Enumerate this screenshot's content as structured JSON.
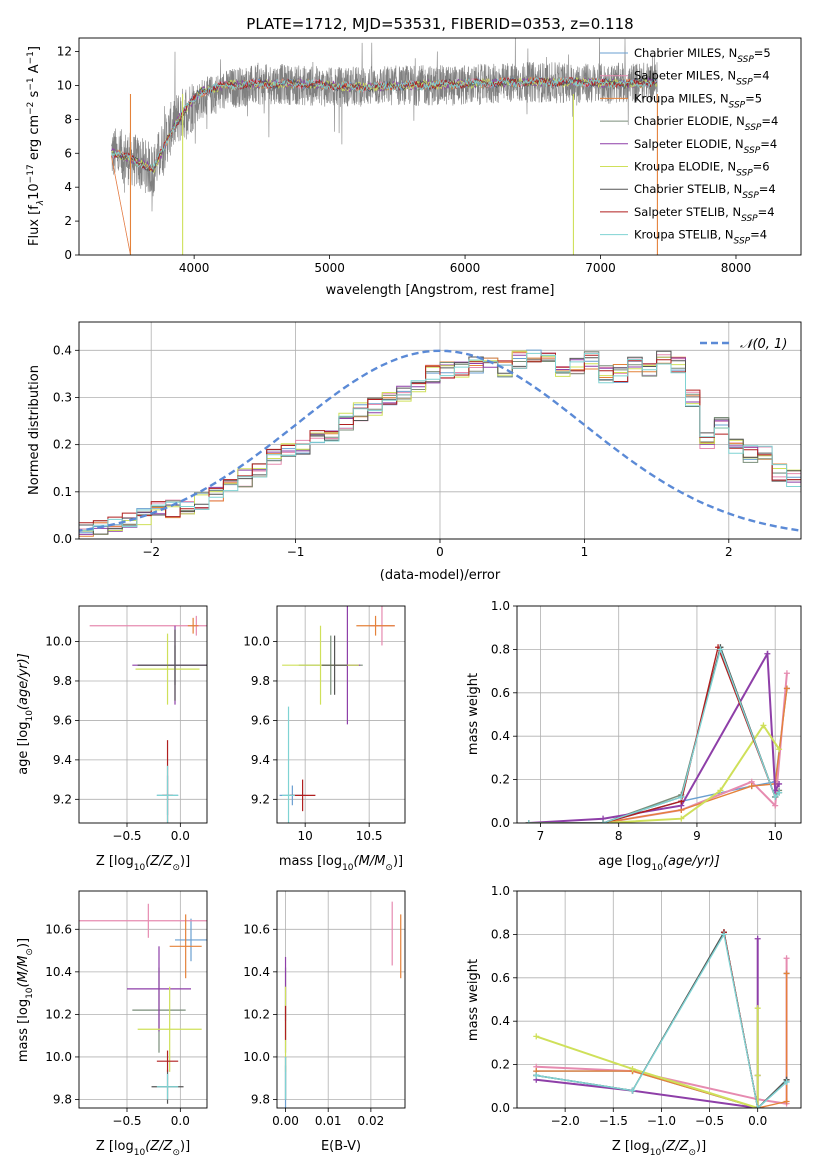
{
  "title": "PLATE=1712, MJD=53531, FIBERID=0353, z=0.118",
  "colors": {
    "chabrier_miles": "#6a9fd0",
    "salpeter_miles": "#e68bb0",
    "kroupa_miles": "#e4823a",
    "chabrier_elodie": "#7a8e7a",
    "salpeter_elodie": "#8e3fa8",
    "kroupa_elodie": "#cfe05a",
    "chabrier_stelib": "#555555",
    "salpeter_stelib": "#b01f1f",
    "kroupa_stelib": "#7fd3d3",
    "gauss": "#5b8ad6",
    "grid": "#b0b0b0"
  },
  "legend": {
    "models": [
      "Chabrier MILES",
      "Salpeter MILES",
      "Kroupa MILES",
      "Chabrier ELODIE",
      "Salpeter ELODIE",
      "Kroupa ELODIE",
      "Chabrier STELIB",
      "Salpeter STELIB",
      "Kroupa STELIB"
    ],
    "nssp_prefix": "N",
    "nssp_sub": "SSP",
    "nssp_values": [
      "=5",
      "=4",
      "=5",
      "=4",
      "=4",
      "=6",
      "=4",
      "=4",
      "=4"
    ],
    "gauss_label": "𝒩(0, 1)"
  },
  "chart_data": [
    {
      "id": "spectrum",
      "type": "line",
      "title": "PLATE=1712, MJD=53531, FIBERID=0353, z=0.118",
      "xlabel": "wavelength [Angstrom, rest frame]",
      "ylabel_main": "Flux [f",
      "ylabel_sub": "λ",
      "ylabel_rest": "10",
      "ylabel_sup1": "−17",
      "ylabel_mid": " erg cm",
      "ylabel_sup2": "−2",
      "ylabel_s": " s",
      "ylabel_sup3": "−1",
      "ylabel_end": " A",
      "ylabel_sup4": "−1",
      "ylabel_close": "]",
      "xlim": [
        3150,
        8480
      ],
      "ylim": [
        0,
        12.8
      ],
      "xticks": [
        4000,
        5000,
        6000,
        7000,
        8000
      ],
      "yticks": [
        0,
        2,
        4,
        6,
        8,
        10,
        12
      ],
      "data_wavelength_range": [
        3390,
        7420
      ],
      "data_envelope": [
        [
          3400,
          6.0
        ],
        [
          3550,
          5.6
        ],
        [
          3700,
          5.0
        ],
        [
          3780,
          6.6
        ],
        [
          3850,
          7.8
        ],
        [
          3950,
          8.6
        ],
        [
          4050,
          9.2
        ],
        [
          4300,
          9.9
        ],
        [
          4600,
          10.1
        ],
        [
          5000,
          9.9
        ],
        [
          5500,
          10.0
        ],
        [
          6000,
          10.0
        ],
        [
          6500,
          10.2
        ],
        [
          7000,
          10.1
        ],
        [
          7400,
          10.2
        ]
      ],
      "model_envelope": [
        [
          3400,
          6.0
        ],
        [
          3500,
          5.8
        ],
        [
          3600,
          5.4
        ],
        [
          3700,
          5.1
        ],
        [
          3780,
          6.4
        ],
        [
          3850,
          7.6
        ],
        [
          3950,
          8.8
        ],
        [
          4050,
          9.6
        ],
        [
          4200,
          10.0
        ],
        [
          4500,
          10.1
        ],
        [
          4800,
          10.1
        ],
        [
          5200,
          9.9
        ],
        [
          5600,
          10.0
        ],
        [
          6000,
          10.1
        ],
        [
          6400,
          10.2
        ],
        [
          6800,
          10.2
        ],
        [
          7200,
          10.1
        ],
        [
          7400,
          10.2
        ]
      ],
      "drops": [
        3530,
        3915,
        6800,
        7420
      ]
    },
    {
      "id": "residuals",
      "type": "line",
      "xlabel": "(data-model)/error",
      "ylabel": "Normed distribution",
      "xlim": [
        -2.5,
        2.5
      ],
      "ylim": [
        0,
        0.46
      ],
      "xticks": [
        -2,
        -1,
        0,
        1,
        2
      ],
      "yticks": [
        0.0,
        0.1,
        0.2,
        0.3,
        0.4
      ],
      "bin_edges_start": -2.6,
      "bin_width": 0.1,
      "base_heights": [
        0.02,
        0.025,
        0.03,
        0.035,
        0.04,
        0.05,
        0.06,
        0.065,
        0.07,
        0.08,
        0.1,
        0.11,
        0.13,
        0.15,
        0.17,
        0.19,
        0.2,
        0.21,
        0.22,
        0.25,
        0.27,
        0.28,
        0.3,
        0.31,
        0.33,
        0.35,
        0.36,
        0.36,
        0.37,
        0.37,
        0.36,
        0.38,
        0.39,
        0.38,
        0.36,
        0.37,
        0.38,
        0.35,
        0.35,
        0.37,
        0.36,
        0.38,
        0.37,
        0.3,
        0.21,
        0.24,
        0.2,
        0.18,
        0.18,
        0.14,
        0.13,
        0.12,
        0.11,
        0.08,
        0.08,
        0.07,
        0.06,
        0.06,
        0.05,
        0.05,
        0.04,
        0.035
      ]
    },
    {
      "id": "age_vs_z",
      "type": "scatter",
      "xlabel_pre": "Z [log",
      "xlabel_sub": "10",
      "xlabel_post": "(Z/Z",
      "xlabel_end": ")]",
      "ylabel_pre": "age  [log",
      "ylabel_sub": "10",
      "ylabel_post": "(age/yr)]",
      "xlim": [
        -0.95,
        0.25
      ],
      "ylim": [
        9.08,
        10.18
      ],
      "xticks": [
        -0.5,
        0.0
      ],
      "xtick_labels": [
        "−0.5",
        "0.0"
      ],
      "yticks": [
        9.2,
        9.4,
        9.6,
        9.8,
        10.0
      ],
      "points": [
        {
          "model": "chabrier_miles",
          "x": -0.12,
          "xe": 0.1,
          "y": 9.22,
          "ye": 0.1
        },
        {
          "model": "salpeter_miles",
          "x": 0.15,
          "xe": 1.0,
          "y": 10.08,
          "ye": 0.05
        },
        {
          "model": "kroupa_miles",
          "x": 0.12,
          "xe": 0.05,
          "y": 10.08,
          "ye": 0.04
        },
        {
          "model": "chabrier_elodie",
          "x": -0.05,
          "xe": 0.35,
          "y": 9.88,
          "ye": 0.1
        },
        {
          "model": "salpeter_elodie",
          "x": -0.05,
          "xe": 0.4,
          "y": 9.88,
          "ye": 0.2
        },
        {
          "model": "kroupa_elodie",
          "x": -0.12,
          "xe": 0.3,
          "y": 9.86,
          "ye": 0.18
        },
        {
          "model": "chabrier_stelib",
          "x": -0.05,
          "xe": 0.35,
          "y": 9.88,
          "ye": 0.18
        },
        {
          "model": "salpeter_stelib",
          "x": -0.12,
          "xe": 0.05,
          "y": 9.22,
          "ye": 0.28
        },
        {
          "model": "kroupa_stelib",
          "x": -0.12,
          "xe": 0.1,
          "y": 9.22,
          "ye": 0.15
        }
      ]
    },
    {
      "id": "age_vs_mass",
      "type": "scatter",
      "xlabel_pre": "mass [log",
      "xlabel_sub": "10",
      "xlabel_post": "(M/M",
      "xlabel_end": ")]",
      "xlim": [
        9.78,
        10.78
      ],
      "ylim": [
        9.08,
        10.18
      ],
      "xticks": [
        10.0,
        10.5
      ],
      "yticks": [
        9.2,
        9.4,
        9.6,
        9.8,
        10.0
      ],
      "points": [
        {
          "model": "chabrier_miles",
          "x": 9.9,
          "xe": 0.1,
          "y": 9.22,
          "ye": 0.05
        },
        {
          "model": "salpeter_miles",
          "x": 10.6,
          "xe": 0.1,
          "y": 10.08,
          "ye": 0.1
        },
        {
          "model": "kroupa_miles",
          "x": 10.55,
          "xe": 0.15,
          "y": 10.08,
          "ye": 0.05
        },
        {
          "model": "chabrier_elodie",
          "x": 10.2,
          "xe": 0.25,
          "y": 9.88,
          "ye": 0.15
        },
        {
          "model": "salpeter_elodie",
          "x": 10.33,
          "xe": 0.1,
          "y": 9.88,
          "ye": 0.3
        },
        {
          "model": "kroupa_elodie",
          "x": 10.12,
          "xe": 0.3,
          "y": 9.88,
          "ye": 0.2
        },
        {
          "model": "chabrier_stelib",
          "x": 10.23,
          "xe": 0.1,
          "y": 9.88,
          "ye": 0.15
        },
        {
          "model": "salpeter_stelib",
          "x": 9.98,
          "xe": 0.1,
          "y": 9.22,
          "ye": 0.08
        },
        {
          "model": "kroupa_stelib",
          "x": 9.87,
          "xe": 0.05,
          "y": 9.22,
          "ye": 0.45
        }
      ]
    },
    {
      "id": "massweight_vs_age",
      "type": "line",
      "xlabel_pre": "age  [log",
      "xlabel_sub": "10",
      "xlabel_post": "(age/yr)]",
      "ylabel": "mass weight",
      "xlim": [
        6.7,
        10.33
      ],
      "ylim": [
        0.0,
        1.0
      ],
      "xticks": [
        7,
        8,
        9,
        10
      ],
      "yticks": [
        0.0,
        0.2,
        0.4,
        0.6,
        0.8,
        1.0
      ],
      "series": [
        {
          "model": "chabrier_miles",
          "x": [
            6.85,
            7.8,
            8.8,
            9.7,
            10.0,
            10.15
          ],
          "y": [
            0.0,
            0.0,
            0.1,
            0.17,
            0.19,
            0.62
          ]
        },
        {
          "model": "salpeter_miles",
          "x": [
            6.85,
            7.8,
            8.8,
            9.7,
            10.0,
            10.15
          ],
          "y": [
            0.0,
            0.0,
            0.06,
            0.19,
            0.08,
            0.69
          ]
        },
        {
          "model": "kroupa_miles",
          "x": [
            6.85,
            7.8,
            8.8,
            9.7,
            10.0,
            10.15
          ],
          "y": [
            0.0,
            0.0,
            0.06,
            0.17,
            0.18,
            0.62
          ]
        },
        {
          "model": "chabrier_elodie",
          "x": [
            6.85,
            7.8,
            8.8,
            9.3,
            10.0,
            10.05
          ],
          "y": [
            0.0,
            0.0,
            0.13,
            0.81,
            0.12,
            0.15
          ]
        },
        {
          "model": "salpeter_elodie",
          "x": [
            6.85,
            7.8,
            8.8,
            9.9,
            10.0,
            10.05
          ],
          "y": [
            0.0,
            0.02,
            0.08,
            0.78,
            0.15,
            0.18
          ]
        },
        {
          "model": "kroupa_elodie",
          "x": [
            6.85,
            7.8,
            8.8,
            9.3,
            9.85,
            10.05
          ],
          "y": [
            0.0,
            0.0,
            0.02,
            0.15,
            0.45,
            0.34
          ]
        },
        {
          "model": "chabrier_stelib",
          "x": [
            6.85,
            7.8,
            8.8,
            9.3,
            10.0,
            10.05
          ],
          "y": [
            0.0,
            0.0,
            0.12,
            0.81,
            0.12,
            0.14
          ]
        },
        {
          "model": "salpeter_stelib",
          "x": [
            6.85,
            7.8,
            8.8,
            9.27,
            10.0
          ],
          "y": [
            0.0,
            0.0,
            0.1,
            0.81,
            0.12
          ]
        },
        {
          "model": "kroupa_stelib",
          "x": [
            6.85,
            7.8,
            8.8,
            9.3,
            10.0,
            10.05
          ],
          "y": [
            0.0,
            0.0,
            0.12,
            0.8,
            0.12,
            0.14
          ]
        }
      ]
    },
    {
      "id": "mass_vs_z",
      "type": "scatter",
      "xlabel_pre": "Z [log",
      "xlabel_sub": "10",
      "xlabel_post": "(Z/Z",
      "xlabel_end": ")]",
      "ylabel_pre": "mass [log",
      "ylabel_sub": "10",
      "ylabel_post": "(M/M",
      "ylabel_end": ")]",
      "xlim": [
        -0.95,
        0.25
      ],
      "ylim": [
        9.76,
        10.78
      ],
      "xticks": [
        -0.5,
        0.0
      ],
      "xtick_labels": [
        "−0.5",
        "0.0"
      ],
      "yticks": [
        9.8,
        10.0,
        10.2,
        10.4,
        10.6
      ],
      "points": [
        {
          "model": "chabrier_miles",
          "x": 0.1,
          "xe": 0.15,
          "y": 10.55,
          "ye": 0.1
        },
        {
          "model": "salpeter_miles",
          "x": -0.3,
          "xe": 1.1,
          "y": 10.64,
          "ye": 0.08
        },
        {
          "model": "kroupa_miles",
          "x": 0.05,
          "xe": 0.15,
          "y": 10.52,
          "ye": 0.15
        },
        {
          "model": "chabrier_elodie",
          "x": -0.2,
          "xe": 0.25,
          "y": 10.22,
          "ye": 0.2
        },
        {
          "model": "salpeter_elodie",
          "x": -0.2,
          "xe": 0.3,
          "y": 10.32,
          "ye": 0.2
        },
        {
          "model": "kroupa_elodie",
          "x": -0.1,
          "xe": 0.3,
          "y": 10.13,
          "ye": 0.2
        },
        {
          "model": "chabrier_stelib",
          "x": -0.12,
          "xe": 0.15,
          "y": 9.86,
          "ye": 0.08
        },
        {
          "model": "salpeter_stelib",
          "x": -0.12,
          "xe": 0.1,
          "y": 9.98,
          "ye": 0.05
        },
        {
          "model": "kroupa_stelib",
          "x": -0.12,
          "xe": 0.1,
          "y": 9.86,
          "ye": 0.06
        }
      ]
    },
    {
      "id": "mass_vs_ebv",
      "type": "scatter",
      "xlabel": "E(B-V)",
      "xlim": [
        -0.002,
        0.028
      ],
      "ylim": [
        9.76,
        10.78
      ],
      "xticks": [
        0.0,
        0.01,
        0.02
      ],
      "xtick_labels": [
        "0.00",
        "0.01",
        "0.02"
      ],
      "yticks": [
        9.8,
        10.0,
        10.2,
        10.4,
        10.6
      ],
      "points": [
        {
          "model": "chabrier_miles",
          "x": 0.0,
          "xe": 0,
          "y": 9.86,
          "ye": 0.1
        },
        {
          "model": "salpeter_miles",
          "x": 0.025,
          "xe": 0,
          "y": 10.58,
          "ye": 0.15
        },
        {
          "model": "kroupa_miles",
          "x": 0.027,
          "xe": 0,
          "y": 10.52,
          "ye": 0.15
        },
        {
          "model": "chabrier_elodie",
          "x": 0.0,
          "xe": 0,
          "y": 10.22,
          "ye": 0.2
        },
        {
          "model": "salpeter_elodie",
          "x": 0.0,
          "xe": 0,
          "y": 10.32,
          "ye": 0.15
        },
        {
          "model": "kroupa_elodie",
          "x": 0.0,
          "xe": 0,
          "y": 10.13,
          "ye": 0.2
        },
        {
          "model": "chabrier_stelib",
          "x": 0.0,
          "xe": 0,
          "y": 9.9,
          "ye": 0.1
        },
        {
          "model": "salpeter_stelib",
          "x": 0.0,
          "xe": 0,
          "y": 10.16,
          "ye": 0.08
        },
        {
          "model": "kroupa_stelib",
          "x": 0.0,
          "xe": 0,
          "y": 9.9,
          "ye": 0.1
        }
      ]
    },
    {
      "id": "massweight_vs_z",
      "type": "line",
      "xlabel_pre": "Z [log",
      "xlabel_sub": "10",
      "xlabel_post": "(Z/Z",
      "xlabel_end": ")]",
      "ylabel": "mass weight",
      "xlim": [
        -2.5,
        0.45
      ],
      "ylim": [
        0.0,
        1.0
      ],
      "xticks": [
        -2.0,
        -1.5,
        -1.0,
        -0.5,
        0.0
      ],
      "xtick_labels": [
        "−2.0",
        "−1.5",
        "−1.0",
        "−0.5",
        "0.0"
      ],
      "yticks": [
        0.0,
        0.2,
        0.4,
        0.6,
        0.8,
        1.0
      ],
      "series": [
        {
          "model": "chabrier_miles",
          "x": [
            -2.3,
            -1.3,
            0.0,
            0.3,
            0.3
          ],
          "y": [
            0.17,
            0.17,
            0.0,
            0.12,
            0.62
          ]
        },
        {
          "model": "salpeter_miles",
          "x": [
            -2.3,
            -1.3,
            0.0,
            0.3,
            0.3
          ],
          "y": [
            0.19,
            0.17,
            0.04,
            0.02,
            0.69
          ]
        },
        {
          "model": "kroupa_miles",
          "x": [
            -2.3,
            -1.3,
            0.0,
            0.3,
            0.3
          ],
          "y": [
            0.17,
            0.17,
            0.0,
            0.03,
            0.62
          ]
        },
        {
          "model": "chabrier_elodie",
          "x": [
            -2.3,
            -1.3,
            -0.35,
            0.0,
            0.3
          ],
          "y": [
            0.15,
            0.08,
            0.81,
            0.0,
            0.13
          ]
        },
        {
          "model": "salpeter_elodie",
          "x": [
            -2.3,
            -1.3,
            0.0,
            0.0,
            0.0
          ],
          "y": [
            0.13,
            0.08,
            0.0,
            0.15,
            0.78
          ]
        },
        {
          "model": "kroupa_elodie",
          "x": [
            -2.3,
            -1.3,
            0.0,
            0.0,
            0.0
          ],
          "y": [
            0.33,
            0.18,
            0.0,
            0.15,
            0.46
          ]
        },
        {
          "model": "chabrier_stelib",
          "x": [
            -2.3,
            -1.3,
            -0.35,
            0.0,
            0.3
          ],
          "y": [
            0.15,
            0.08,
            0.81,
            0.0,
            0.13
          ]
        },
        {
          "model": "salpeter_stelib",
          "x": [
            -0.35,
            0.0
          ],
          "y": [
            0.81,
            0.0
          ]
        },
        {
          "model": "kroupa_stelib",
          "x": [
            -2.3,
            -1.3,
            -0.35,
            0.0,
            0.3
          ],
          "y": [
            0.15,
            0.08,
            0.8,
            0.0,
            0.12
          ]
        }
      ]
    }
  ]
}
